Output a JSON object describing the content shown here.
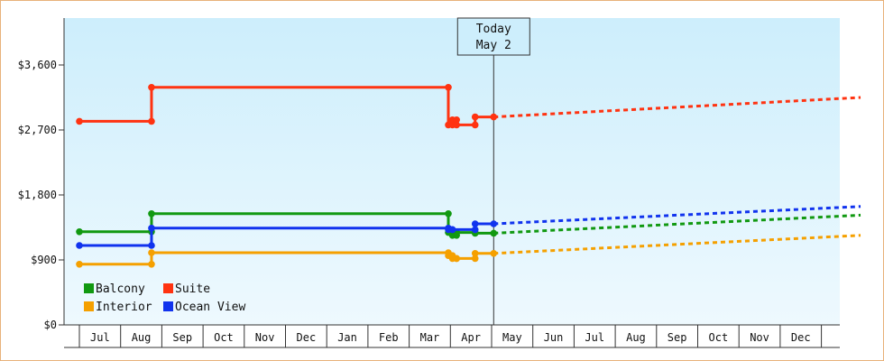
{
  "chart_data": {
    "type": "line",
    "x_axis": {
      "months": [
        "Jul",
        "Aug",
        "Sep",
        "Oct",
        "Nov",
        "Dec",
        "Jan",
        "Feb",
        "Mar",
        "Apr",
        "May",
        "Jun",
        "Jul",
        "Aug",
        "Sep",
        "Oct",
        "Nov",
        "Dec"
      ]
    },
    "y_axis": {
      "ticks": [
        0,
        900,
        1800,
        2700,
        3600
      ],
      "tick_labels": [
        "$0",
        "$900",
        "$1,800",
        "$2,700",
        "$3,600"
      ],
      "ylim": [
        0,
        4250
      ]
    },
    "today_marker": {
      "line1": "Today",
      "line2": "May 2",
      "x": 10.05
    },
    "grid": false,
    "legend_placement": "bottom-left",
    "series": [
      {
        "name": "Balcony",
        "color": "#119911",
        "x": [
          0,
          1.75,
          1.75,
          8.95,
          8.95,
          9.05,
          9.05,
          9.15,
          9.15,
          9.6,
          9.6,
          10.05
        ],
        "values": [
          1290,
          1290,
          1540,
          1540,
          1280,
          1280,
          1240,
          1240,
          1280,
          1280,
          1270,
          1270
        ],
        "forecast_end": {
          "x": 18.95,
          "value": 1520
        }
      },
      {
        "name": "Suite",
        "color": "#ff3311",
        "x": [
          0,
          1.75,
          1.75,
          8.95,
          8.95,
          9.05,
          9.05,
          9.15,
          9.15,
          9.6,
          9.6,
          10.05
        ],
        "values": [
          2820,
          2820,
          3290,
          3290,
          2770,
          2770,
          2840,
          2840,
          2770,
          2770,
          2880,
          2880
        ],
        "forecast_end": {
          "x": 18.95,
          "value": 3150
        }
      },
      {
        "name": "Interior",
        "color": "#f5a000",
        "x": [
          0,
          1.75,
          1.75,
          8.95,
          8.95,
          9.05,
          9.05,
          9.15,
          9.15,
          9.6,
          9.6,
          10.05
        ],
        "values": [
          840,
          840,
          1000,
          1000,
          960,
          960,
          920,
          920,
          920,
          920,
          990,
          990
        ],
        "forecast_end": {
          "x": 18.95,
          "value": 1240
        }
      },
      {
        "name": "Ocean View",
        "color": "#1133ee",
        "x": [
          0,
          1.75,
          1.75,
          8.95,
          8.95,
          9.05,
          9.05,
          9.6,
          9.6,
          10.05
        ],
        "values": [
          1100,
          1100,
          1340,
          1340,
          1320,
          1320,
          1320,
          1320,
          1400,
          1400
        ],
        "forecast_end": {
          "x": 18.95,
          "value": 1640
        }
      }
    ],
    "legend_order": [
      "Balcony",
      "Suite",
      "Interior",
      "Ocean View"
    ]
  }
}
